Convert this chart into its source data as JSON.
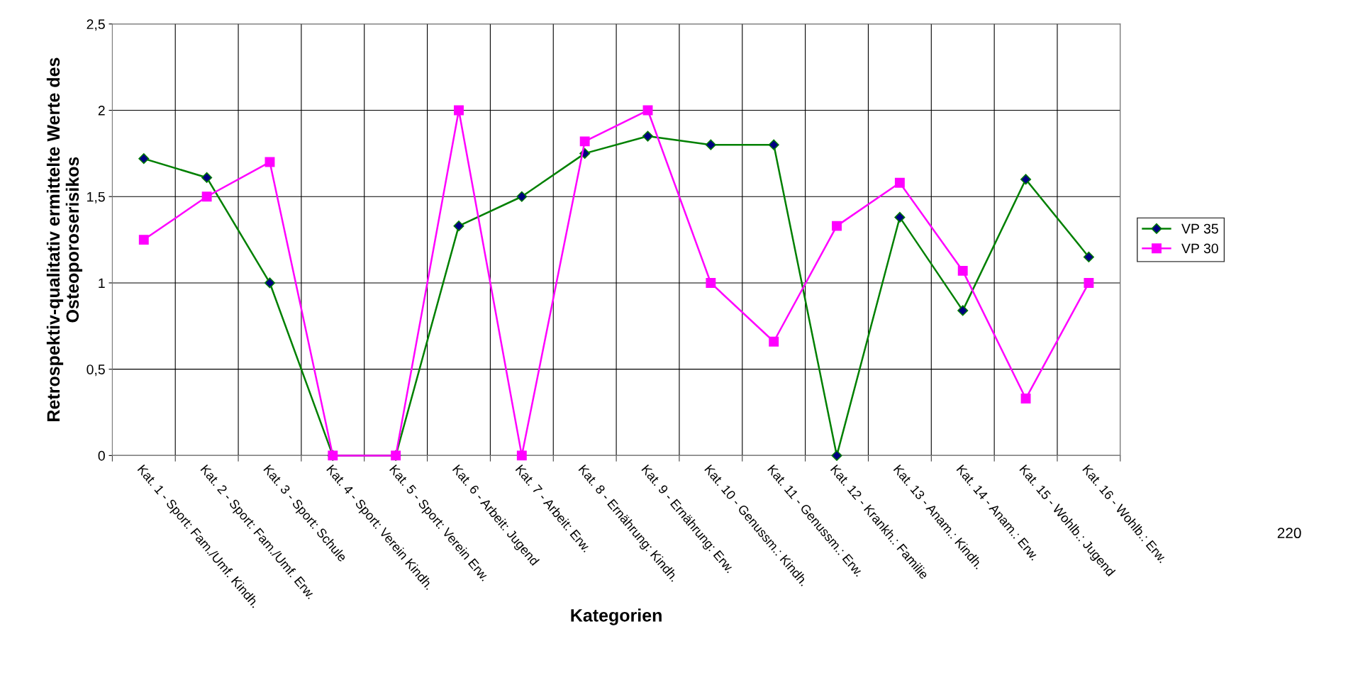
{
  "chart_data": {
    "type": "line",
    "xlabel": "Kategorien",
    "ylabel": "Retrospektiv-qualitativ ermittelte Werte des\nOsteoporoserisikos",
    "categories": [
      "Kat. 1 - Sport: Fam./Umf. Kindh.",
      "Kat. 2 - Sport: Fam./Umf. Erw.",
      "Kat. 3 - Sport: Schule",
      "Kat. 4 - Sport: Verein Kindh.",
      "Kat. 5 - Sport: Verein Erw.",
      "Kat. 6 - Arbeit: Jugend",
      "Kat. 7 - Arbeit: Erw.",
      "Kat. 8 - Ernährung: Kindh.",
      "Kat. 9 - Ernährung: Erw.",
      "Kat. 10 - Genussm.: Kindh.",
      "Kat. 11 - Genussm.: Erw.",
      "Kat. 12 - Krankh.: Familie",
      "Kat. 13 - Anam.: Kindh.",
      "Kat. 14 - Anam.: Erw.",
      "Kat. 15 - Wohlb.: Jugend",
      "Kat. 16 - Wohlb.: Erw."
    ],
    "series": [
      {
        "name": "VP 35",
        "color": "#008000",
        "marker": "diamond",
        "values": [
          1.72,
          1.61,
          1.0,
          0,
          0,
          1.33,
          1.5,
          1.75,
          1.85,
          1.8,
          1.8,
          0,
          1.38,
          0.84,
          1.6,
          1.15
        ]
      },
      {
        "name": "VP 30",
        "color": "#ff00ff",
        "marker": "square",
        "values": [
          1.25,
          1.5,
          1.7,
          0,
          0,
          2.0,
          0,
          1.82,
          2.0,
          1.0,
          0.66,
          1.33,
          1.58,
          1.07,
          0.33,
          1.0
        ]
      }
    ],
    "ylim": [
      0,
      2.5
    ],
    "yticks": [
      0,
      {
        "value": 0.5,
        "label": "0,5"
      },
      1,
      {
        "value": 1.5,
        "label": "1,5"
      },
      2,
      {
        "value": 2.5,
        "label": "2,5"
      }
    ],
    "grid": true,
    "legend": "right",
    "line_style": "solid",
    "annotations": [
      "220"
    ]
  }
}
